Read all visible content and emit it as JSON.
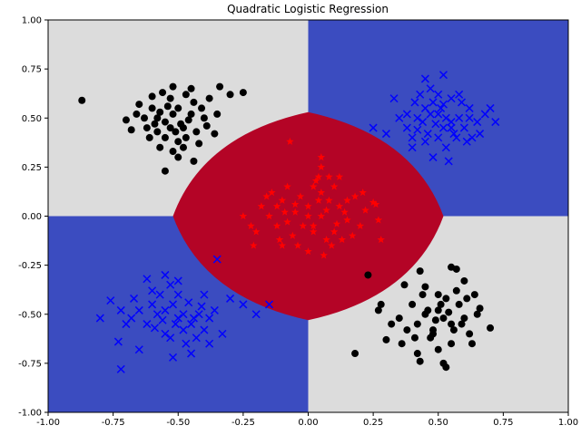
{
  "chart_data": {
    "type": "scatter",
    "title": "Quadratic Logistic Regression",
    "xlabel": "",
    "ylabel": "",
    "xlim": [
      -1.0,
      1.0
    ],
    "ylim": [
      -1.0,
      1.0
    ],
    "x_ticks": [
      "-1.00",
      "-0.75",
      "-0.50",
      "-0.25",
      "0.00",
      "0.25",
      "0.50",
      "0.75",
      "1.00"
    ],
    "y_ticks": [
      "-1.00",
      "-0.75",
      "-0.50",
      "-0.25",
      "0.00",
      "0.25",
      "0.50",
      "0.75",
      "1.00"
    ],
    "grid": false,
    "legend": "none",
    "background_regions": [
      {
        "color": "#dcdcdc",
        "x": [
          -1.0,
          0.0
        ],
        "y": [
          0.0,
          1.0
        ]
      },
      {
        "color": "#3b4cc0",
        "x": [
          0.0,
          1.0
        ],
        "y": [
          0.0,
          1.0
        ]
      },
      {
        "color": "#3b4cc0",
        "x": [
          -1.0,
          0.0
        ],
        "y": [
          -1.0,
          0.0
        ]
      },
      {
        "color": "#dcdcdc",
        "x": [
          0.0,
          1.0
        ],
        "y": [
          -1.0,
          0.0
        ]
      }
    ],
    "decision_region": {
      "color": "#b40426",
      "center": [
        0.0,
        0.0
      ],
      "half_width": 0.52,
      "half_height": 0.53,
      "shape": "concave-diamond"
    },
    "series": [
      {
        "marker": "o",
        "color": "#000000",
        "points": [
          [
            -0.52,
            0.52
          ],
          [
            -0.55,
            0.48
          ],
          [
            -0.5,
            0.55
          ],
          [
            -0.48,
            0.45
          ],
          [
            -0.58,
            0.5
          ],
          [
            -0.45,
            0.52
          ],
          [
            -0.53,
            0.6
          ],
          [
            -0.6,
            0.55
          ],
          [
            -0.4,
            0.5
          ],
          [
            -0.62,
            0.45
          ],
          [
            -0.55,
            0.4
          ],
          [
            -0.5,
            0.38
          ],
          [
            -0.47,
            0.62
          ],
          [
            -0.35,
            0.52
          ],
          [
            -0.65,
            0.57
          ],
          [
            -0.52,
            0.66
          ],
          [
            -0.43,
            0.43
          ],
          [
            -0.57,
            0.35
          ],
          [
            -0.48,
            0.35
          ],
          [
            -0.38,
            0.6
          ],
          [
            -0.3,
            0.62
          ],
          [
            -0.25,
            0.63
          ],
          [
            -0.68,
            0.44
          ],
          [
            -0.66,
            0.52
          ],
          [
            -0.56,
            0.63
          ],
          [
            -0.44,
            0.58
          ],
          [
            -0.42,
            0.37
          ],
          [
            -0.5,
            0.3
          ],
          [
            -0.61,
            0.4
          ],
          [
            -0.45,
            0.65
          ],
          [
            -0.54,
            0.56
          ],
          [
            -0.49,
            0.47
          ],
          [
            -0.51,
            0.43
          ],
          [
            -0.46,
            0.49
          ],
          [
            -0.57,
            0.53
          ],
          [
            -0.53,
            0.45
          ],
          [
            -0.59,
            0.47
          ],
          [
            -0.63,
            0.5
          ],
          [
            -0.41,
            0.55
          ],
          [
            -0.36,
            0.42
          ],
          [
            -0.7,
            0.49
          ],
          [
            -0.55,
            0.23
          ],
          [
            -0.87,
            0.59
          ],
          [
            -0.34,
            0.66
          ],
          [
            -0.44,
            0.28
          ],
          [
            -0.52,
            0.33
          ],
          [
            -0.47,
            0.4
          ],
          [
            -0.58,
            0.43
          ],
          [
            -0.39,
            0.46
          ],
          [
            -0.6,
            0.61
          ],
          [
            0.52,
            -0.52
          ],
          [
            0.5,
            -0.48
          ],
          [
            0.55,
            -0.55
          ],
          [
            0.45,
            -0.5
          ],
          [
            0.58,
            -0.45
          ],
          [
            0.48,
            -0.58
          ],
          [
            0.6,
            -0.52
          ],
          [
            0.42,
            -0.55
          ],
          [
            0.53,
            -0.42
          ],
          [
            0.47,
            -0.62
          ],
          [
            0.62,
            -0.6
          ],
          [
            0.4,
            -0.45
          ],
          [
            0.57,
            -0.38
          ],
          [
            0.35,
            -0.52
          ],
          [
            0.65,
            -0.5
          ],
          [
            0.5,
            -0.68
          ],
          [
            0.44,
            -0.4
          ],
          [
            0.38,
            -0.58
          ],
          [
            0.55,
            -0.65
          ],
          [
            0.52,
            -0.75
          ],
          [
            0.53,
            -0.77
          ],
          [
            0.42,
            -0.7
          ],
          [
            0.7,
            -0.57
          ],
          [
            0.66,
            -0.47
          ],
          [
            0.3,
            -0.63
          ],
          [
            0.27,
            -0.48
          ],
          [
            0.6,
            -0.33
          ],
          [
            0.57,
            -0.27
          ],
          [
            0.55,
            -0.26
          ],
          [
            0.43,
            -0.28
          ],
          [
            0.23,
            -0.3
          ],
          [
            0.18,
            -0.7
          ],
          [
            0.28,
            -0.45
          ],
          [
            0.32,
            -0.55
          ],
          [
            0.46,
            -0.48
          ],
          [
            0.49,
            -0.53
          ],
          [
            0.51,
            -0.45
          ],
          [
            0.54,
            -0.49
          ],
          [
            0.48,
            -0.6
          ],
          [
            0.59,
            -0.55
          ],
          [
            0.61,
            -0.42
          ],
          [
            0.37,
            -0.35
          ],
          [
            0.41,
            -0.62
          ],
          [
            0.56,
            -0.58
          ],
          [
            0.64,
            -0.4
          ],
          [
            0.45,
            -0.36
          ],
          [
            0.5,
            -0.4
          ],
          [
            0.63,
            -0.65
          ],
          [
            0.36,
            -0.65
          ],
          [
            0.43,
            -0.74
          ]
        ]
      },
      {
        "marker": "x",
        "color": "#0000ff",
        "points": [
          [
            0.5,
            0.52
          ],
          [
            0.55,
            0.48
          ],
          [
            0.45,
            0.55
          ],
          [
            0.52,
            0.45
          ],
          [
            0.48,
            0.58
          ],
          [
            0.58,
            0.5
          ],
          [
            0.42,
            0.5
          ],
          [
            0.55,
            0.6
          ],
          [
            0.6,
            0.45
          ],
          [
            0.4,
            0.4
          ],
          [
            0.47,
            0.65
          ],
          [
            0.62,
            0.55
          ],
          [
            0.5,
            0.4
          ],
          [
            0.38,
            0.52
          ],
          [
            0.65,
            0.48
          ],
          [
            0.53,
            0.35
          ],
          [
            0.45,
            0.7
          ],
          [
            0.52,
            0.72
          ],
          [
            0.43,
            0.62
          ],
          [
            0.57,
            0.4
          ],
          [
            0.68,
            0.52
          ],
          [
            0.7,
            0.55
          ],
          [
            0.72,
            0.48
          ],
          [
            0.3,
            0.42
          ],
          [
            0.33,
            0.6
          ],
          [
            0.25,
            0.45
          ],
          [
            0.46,
            0.42
          ],
          [
            0.56,
            0.42
          ],
          [
            0.49,
            0.47
          ],
          [
            0.51,
            0.55
          ],
          [
            0.44,
            0.48
          ],
          [
            0.59,
            0.58
          ],
          [
            0.41,
            0.58
          ],
          [
            0.63,
            0.4
          ],
          [
            0.48,
            0.3
          ],
          [
            0.54,
            0.28
          ],
          [
            0.35,
            0.5
          ],
          [
            0.61,
            0.38
          ],
          [
            0.66,
            0.42
          ],
          [
            0.5,
            0.62
          ],
          [
            0.47,
            0.52
          ],
          [
            0.53,
            0.5
          ],
          [
            0.58,
            0.62
          ],
          [
            0.42,
            0.44
          ],
          [
            0.4,
            0.35
          ],
          [
            0.62,
            0.5
          ],
          [
            0.45,
            0.38
          ],
          [
            0.55,
            0.45
          ],
          [
            0.38,
            0.45
          ],
          [
            0.52,
            0.57
          ],
          [
            -0.5,
            -0.52
          ],
          [
            -0.55,
            -0.48
          ],
          [
            -0.45,
            -0.55
          ],
          [
            -0.52,
            -0.45
          ],
          [
            -0.48,
            -0.58
          ],
          [
            -0.58,
            -0.5
          ],
          [
            -0.42,
            -0.5
          ],
          [
            -0.55,
            -0.6
          ],
          [
            -0.6,
            -0.45
          ],
          [
            -0.4,
            -0.4
          ],
          [
            -0.47,
            -0.65
          ],
          [
            -0.62,
            -0.55
          ],
          [
            -0.5,
            -0.4
          ],
          [
            -0.38,
            -0.52
          ],
          [
            -0.65,
            -0.48
          ],
          [
            -0.53,
            -0.35
          ],
          [
            -0.45,
            -0.7
          ],
          [
            -0.52,
            -0.72
          ],
          [
            -0.43,
            -0.62
          ],
          [
            -0.57,
            -0.4
          ],
          [
            -0.68,
            -0.52
          ],
          [
            -0.7,
            -0.55
          ],
          [
            -0.72,
            -0.48
          ],
          [
            -0.3,
            -0.42
          ],
          [
            -0.33,
            -0.6
          ],
          [
            -0.25,
            -0.45
          ],
          [
            -0.35,
            -0.22
          ],
          [
            -0.2,
            -0.5
          ],
          [
            -0.73,
            -0.64
          ],
          [
            -0.72,
            -0.78
          ],
          [
            -0.65,
            -0.68
          ],
          [
            -0.6,
            -0.38
          ],
          [
            -0.55,
            -0.3
          ],
          [
            -0.5,
            -0.33
          ],
          [
            -0.4,
            -0.58
          ],
          [
            -0.38,
            -0.65
          ],
          [
            -0.15,
            -0.45
          ],
          [
            -0.8,
            -0.52
          ],
          [
            -0.76,
            -0.43
          ],
          [
            -0.67,
            -0.42
          ],
          [
            -0.48,
            -0.5
          ],
          [
            -0.51,
            -0.55
          ],
          [
            -0.46,
            -0.44
          ],
          [
            -0.44,
            -0.52
          ],
          [
            -0.56,
            -0.53
          ],
          [
            -0.53,
            -0.62
          ],
          [
            -0.59,
            -0.57
          ],
          [
            -0.41,
            -0.46
          ],
          [
            -0.36,
            -0.48
          ],
          [
            -0.62,
            -0.32
          ]
        ]
      },
      {
        "marker": "*",
        "color": "#ff0000",
        "points": [
          [
            0.0,
            0.05
          ],
          [
            0.05,
            0.0
          ],
          [
            -0.05,
            0.02
          ],
          [
            0.02,
            -0.05
          ],
          [
            0.08,
            0.08
          ],
          [
            -0.08,
            -0.03
          ],
          [
            0.1,
            -0.08
          ],
          [
            -0.03,
            0.1
          ],
          [
            0.12,
            0.05
          ],
          [
            -0.1,
            0.08
          ],
          [
            0.05,
            0.12
          ],
          [
            0.15,
            -0.02
          ],
          [
            -0.12,
            -0.05
          ],
          [
            0.02,
            0.15
          ],
          [
            0.18,
            0.1
          ],
          [
            -0.15,
            0.0
          ],
          [
            0.07,
            -0.12
          ],
          [
            -0.06,
            -0.1
          ],
          [
            0.2,
            -0.05
          ],
          [
            -0.18,
            0.05
          ],
          [
            0.03,
            0.18
          ],
          [
            0.13,
            -0.12
          ],
          [
            -0.14,
            0.12
          ],
          [
            0.22,
            0.03
          ],
          [
            -0.2,
            -0.08
          ],
          [
            0.08,
            0.2
          ],
          [
            0.05,
            0.25
          ],
          [
            -0.07,
            0.38
          ],
          [
            0.04,
            0.2
          ],
          [
            0.1,
            0.15
          ],
          [
            -0.04,
            -0.15
          ],
          [
            0.02,
            -0.08
          ],
          [
            -0.25,
            0.0
          ],
          [
            0.27,
            -0.02
          ],
          [
            -0.22,
            -0.05
          ],
          [
            0.25,
            0.07
          ],
          [
            -0.1,
            -0.15
          ],
          [
            0.15,
            0.08
          ],
          [
            0.0,
            -0.18
          ],
          [
            0.05,
            0.3
          ],
          [
            -0.02,
            -0.05
          ],
          [
            0.07,
            0.03
          ],
          [
            -0.09,
            0.02
          ],
          [
            0.11,
            -0.04
          ],
          [
            0.04,
            0.08
          ],
          [
            -0.05,
            0.06
          ],
          [
            0.14,
            0.02
          ],
          [
            -0.11,
            -0.12
          ],
          [
            0.09,
            -0.15
          ],
          [
            0.17,
            -0.1
          ],
          [
            0.0,
            0.0
          ],
          [
            -0.16,
            0.1
          ],
          [
            0.21,
            0.12
          ],
          [
            0.26,
            0.06
          ],
          [
            0.28,
            -0.12
          ],
          [
            -0.21,
            -0.15
          ],
          [
            -0.12,
            0.05
          ],
          [
            0.06,
            -0.2
          ],
          [
            -0.08,
            0.15
          ],
          [
            0.12,
            0.2
          ]
        ]
      }
    ]
  }
}
